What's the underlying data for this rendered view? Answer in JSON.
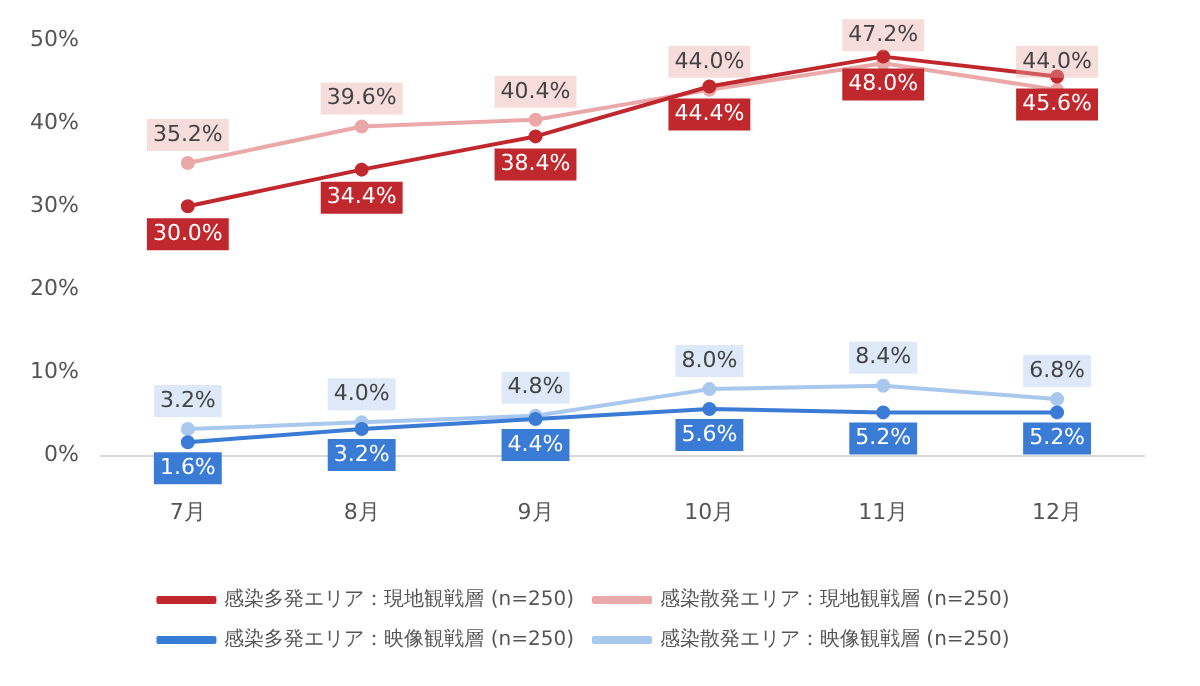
{
  "chart_data": {
    "type": "line",
    "categories": [
      "7月",
      "8月",
      "9月",
      "10月",
      "11月",
      "12月"
    ],
    "ylim": [
      0,
      50
    ],
    "yticks": [
      {
        "value": 0,
        "label": "0%"
      },
      {
        "value": 10,
        "label": "10%"
      },
      {
        "value": 20,
        "label": "20%"
      },
      {
        "value": 30,
        "label": "30%"
      },
      {
        "value": 40,
        "label": "40%"
      },
      {
        "value": 50,
        "label": "50%"
      }
    ],
    "grid": false,
    "legend": "bottom",
    "marker": "circle",
    "line_style": "solid",
    "series": [
      {
        "name": "感染多発エリア：現地観戦層 (n=250)",
        "color": "#c0282d",
        "values": [
          30.0,
          34.4,
          38.4,
          44.4,
          48.0,
          45.6
        ],
        "value_labels": [
          "30.0%",
          "34.4%",
          "38.4%",
          "44.4%",
          "48.0%",
          "45.6%"
        ]
      },
      {
        "name": "感染散発エリア：現地観戦層 (n=250)",
        "color": "#eba8a8",
        "values": [
          35.2,
          39.6,
          40.4,
          44.0,
          47.2,
          44.0
        ],
        "value_labels": [
          "35.2%",
          "39.6%",
          "40.4%",
          "44.0%",
          "47.2%",
          "44.0%"
        ]
      },
      {
        "name": "感染多発エリア：映像観戦層 (n=250)",
        "color": "#3a7bd5",
        "values": [
          1.6,
          3.2,
          4.4,
          5.6,
          5.2,
          5.2
        ],
        "value_labels": [
          "1.6%",
          "3.2%",
          "4.4%",
          "5.6%",
          "5.2%",
          "5.2%"
        ]
      },
      {
        "name": "感染散発エリア：映像観戦層 (n=250)",
        "color": "#a9c8ee",
        "values": [
          3.2,
          4.0,
          4.8,
          8.0,
          8.4,
          6.8
        ],
        "value_labels": [
          "3.2%",
          "4.0%",
          "4.8%",
          "8.0%",
          "8.4%",
          "6.8%"
        ]
      }
    ]
  }
}
